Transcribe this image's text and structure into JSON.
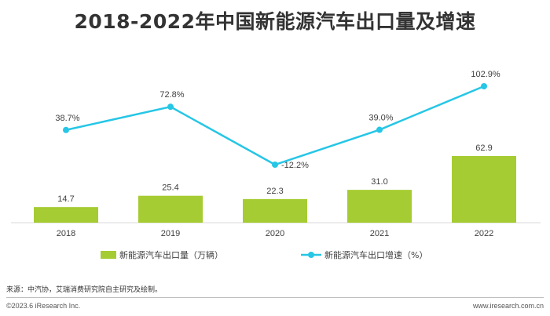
{
  "title": "2018-2022年中国新能源汽车出口量及增速",
  "colors": {
    "bar": "#a5cc32",
    "line": "#26c6e6",
    "axis": "#d9d9d9",
    "text": "#404040"
  },
  "chart_data": {
    "type": "bar",
    "categories": [
      "2018",
      "2019",
      "2020",
      "2021",
      "2022"
    ],
    "series": [
      {
        "name": "新能源汽车出口量（万辆）",
        "type": "bar",
        "values": [
          14.7,
          25.4,
          22.3,
          31.0,
          62.9
        ],
        "labels": [
          "14.7",
          "25.4",
          "22.3",
          "31.0",
          "62.9"
        ]
      },
      {
        "name": "新能源汽车出口增速（%）",
        "type": "line",
        "values": [
          38.7,
          72.8,
          -12.2,
          39.0,
          102.9
        ],
        "labels": [
          "38.7%",
          "72.8%",
          "-12.2%",
          "39.0%",
          "102.9%"
        ]
      }
    ],
    "grid": false,
    "legend": "bottom"
  },
  "footer": {
    "source": "来源：中汽协，艾瑞消费研究院自主研究及绘制。",
    "copyright": "©2023.6 iResearch Inc.",
    "website": "www.iresearch.com.cn"
  }
}
